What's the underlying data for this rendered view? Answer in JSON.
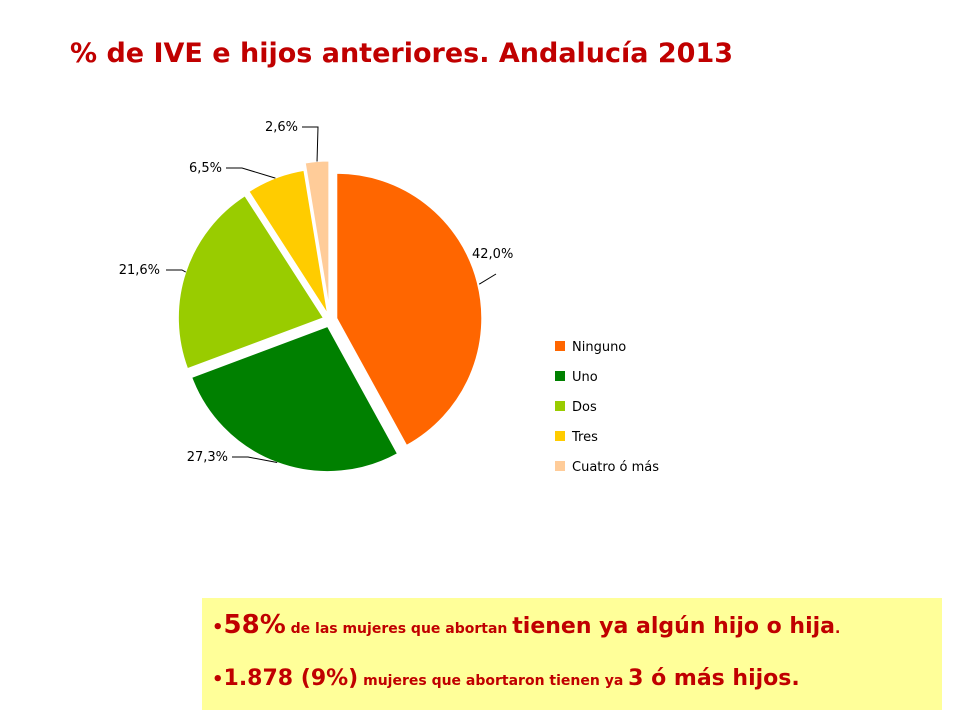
{
  "title": "% de IVE e hijos anteriores. Andalucía 2013",
  "chart_data": {
    "type": "pie",
    "title": "% de IVE e hijos anteriores. Andalucía 2013",
    "categories": [
      "Ninguno",
      "Uno",
      "Dos",
      "Tres",
      "Cuatro ó más"
    ],
    "values": [
      42.0,
      27.3,
      21.6,
      6.5,
      2.6
    ],
    "value_labels": [
      "42,0%",
      "27,3%",
      "21,6%",
      "6,5%",
      "2,6%"
    ],
    "colors": [
      "#ff6600",
      "#008000",
      "#99cc00",
      "#ffcc00",
      "#ffcc99"
    ],
    "legend_placement": "right",
    "exploded": true
  },
  "callout": {
    "line1": {
      "bullet": "•",
      "pct": "58%",
      "a": " de las mujeres que abortan ",
      "b": "tienen ya algún hijo o hija",
      "c": "."
    },
    "line2": {
      "bullet": "•",
      "num": "1.878 (9%)",
      "a": " mujeres que abortaron tienen ya ",
      "b": "3 ó más hijos."
    }
  }
}
